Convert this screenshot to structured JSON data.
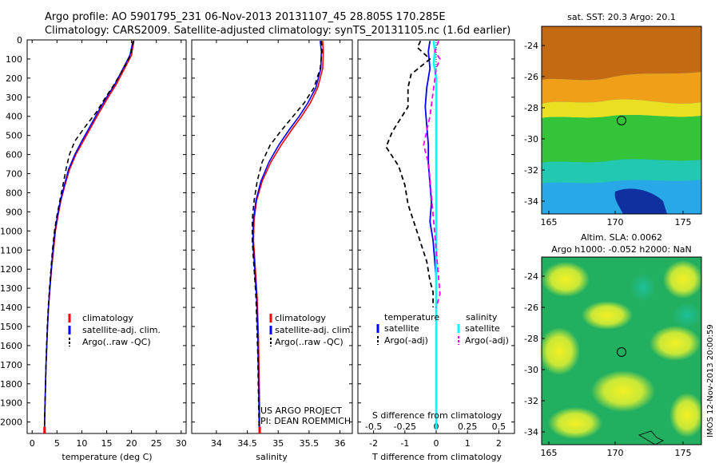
{
  "header": {
    "line1": "Argo profile: AO 5901795_231 06-Nov-2013 20131107_45 28.805S 170.285E",
    "line2": "Climatology: CARS2009. Satellite-adjusted climatology: synTS_20131105.nc (1.6d earlier)"
  },
  "colors": {
    "climatology": "#ff0000",
    "satellite": "#0000ff",
    "argo": "#000000",
    "salinity_satellite": "#00ffff",
    "salinity_argo": "#ff00ff"
  },
  "depth_axis": {
    "ticks": [
      "0",
      "100",
      "200",
      "300",
      "400",
      "500",
      "600",
      "700",
      "800",
      "900",
      "1000",
      "1100",
      "1200",
      "1300",
      "1400",
      "1500",
      "1600",
      "1700",
      "1800",
      "1900",
      "2000"
    ],
    "range": [
      0,
      2060
    ]
  },
  "chart_data": [
    {
      "id": "temperature",
      "type": "line",
      "xlabel": "temperature (deg C)",
      "xlim": [
        -1,
        31
      ],
      "x_ticks": [
        "0",
        "5",
        "10",
        "15",
        "20",
        "25",
        "30"
      ],
      "ylim": [
        2060,
        0
      ],
      "legend": [
        "climatology",
        "satellite-adj. clim.",
        "Argo(..raw -QC)"
      ],
      "series": [
        {
          "name": "climatology",
          "style": "solid",
          "color": "#ff0000",
          "points": [
            [
              20.5,
              5
            ],
            [
              20.3,
              30
            ],
            [
              20,
              80
            ],
            [
              18.6,
              150
            ],
            [
              17,
              230
            ],
            [
              15.3,
              300
            ],
            [
              13.5,
              380
            ],
            [
              12,
              450
            ],
            [
              10.3,
              530
            ],
            [
              8.8,
              600
            ],
            [
              7.5,
              680
            ],
            [
              6.6,
              760
            ],
            [
              5.8,
              840
            ],
            [
              5.2,
              920
            ],
            [
              4.7,
              1000
            ],
            [
              4.3,
              1100
            ],
            [
              3.9,
              1200
            ],
            [
              3.6,
              1300
            ],
            [
              3.3,
              1400
            ],
            [
              3.1,
              1500
            ],
            [
              2.95,
              1600
            ],
            [
              2.8,
              1700
            ],
            [
              2.7,
              1800
            ],
            [
              2.6,
              1900
            ],
            [
              2.5,
              2000
            ],
            [
              2.5,
              2040
            ]
          ]
        },
        {
          "name": "satellite-adj. clim.",
          "style": "solid",
          "color": "#0000ff",
          "points": [
            [
              20.3,
              5
            ],
            [
              20.1,
              30
            ],
            [
              19.7,
              80
            ],
            [
              18.3,
              150
            ],
            [
              16.7,
              230
            ],
            [
              15,
              300
            ],
            [
              13.2,
              380
            ],
            [
              11.7,
              450
            ],
            [
              10,
              530
            ],
            [
              8.6,
              600
            ],
            [
              7.3,
              680
            ],
            [
              6.5,
              760
            ],
            [
              5.7,
              840
            ],
            [
              5.1,
              920
            ],
            [
              4.6,
              1000
            ],
            [
              4.2,
              1100
            ],
            [
              3.85,
              1200
            ],
            [
              3.55,
              1300
            ],
            [
              3.3,
              1400
            ],
            [
              3.1,
              1500
            ],
            [
              2.95,
              1600
            ],
            [
              2.8,
              1700
            ],
            [
              2.7,
              1800
            ],
            [
              2.6,
              1900
            ],
            [
              2.5,
              2000
            ],
            [
              2.5,
              2040
            ]
          ]
        },
        {
          "name": "Argo(..raw -QC)",
          "style": "dashed",
          "color": "#000000",
          "points": [
            [
              20.4,
              5
            ],
            [
              20.2,
              30
            ],
            [
              19.8,
              80
            ],
            [
              18.4,
              150
            ],
            [
              16.6,
              230
            ],
            [
              14.8,
              300
            ],
            [
              12.9,
              380
            ],
            [
              10.8,
              450
            ],
            [
              8.6,
              530
            ],
            [
              7.5,
              600
            ],
            [
              6.8,
              680
            ],
            [
              6.2,
              760
            ],
            [
              5.6,
              840
            ],
            [
              5,
              920
            ],
            [
              4.5,
              1000
            ],
            [
              4.1,
              1100
            ],
            [
              3.8,
              1200
            ],
            [
              3.5,
              1300
            ],
            [
              3.25,
              1400
            ],
            [
              3.05,
              1500
            ],
            [
              2.9,
              1600
            ],
            [
              2.8,
              1700
            ],
            [
              2.7,
              1800
            ],
            [
              2.6,
              1900
            ],
            [
              2.5,
              2000
            ],
            [
              2.5,
              2040
            ]
          ]
        }
      ]
    },
    {
      "id": "salinity",
      "type": "line",
      "xlabel": "salinity",
      "xlim": [
        33.6,
        36.2
      ],
      "x_ticks": [
        "34",
        "34.5",
        "35",
        "35.5",
        "36"
      ],
      "ylim": [
        2060,
        0
      ],
      "legend": [
        "climatology",
        "satellite-adj. clim.",
        "Argo(..raw -QC)"
      ],
      "annotations": [
        "US ARGO PROJECT",
        "PI: DEAN ROEMMICH"
      ],
      "series": [
        {
          "name": "climatology",
          "style": "solid",
          "color": "#ff0000",
          "points": [
            [
              35.72,
              5
            ],
            [
              35.73,
              60
            ],
            [
              35.72,
              150
            ],
            [
              35.64,
              250
            ],
            [
              35.52,
              330
            ],
            [
              35.38,
              400
            ],
            [
              35.22,
              470
            ],
            [
              35.05,
              550
            ],
            [
              34.88,
              640
            ],
            [
              34.74,
              740
            ],
            [
              34.65,
              840
            ],
            [
              34.61,
              940
            ],
            [
              34.6,
              1050
            ],
            [
              34.62,
              1150
            ],
            [
              34.64,
              1250
            ],
            [
              34.66,
              1350
            ],
            [
              34.67,
              1450
            ],
            [
              34.68,
              1550
            ],
            [
              34.685,
              1650
            ],
            [
              34.69,
              1750
            ],
            [
              34.695,
              1850
            ],
            [
              34.7,
              1950
            ],
            [
              34.7,
              2040
            ]
          ]
        },
        {
          "name": "satellite-adj. clim.",
          "style": "solid",
          "color": "#0000ff",
          "points": [
            [
              35.68,
              5
            ],
            [
              35.7,
              60
            ],
            [
              35.69,
              150
            ],
            [
              35.61,
              250
            ],
            [
              35.48,
              330
            ],
            [
              35.34,
              400
            ],
            [
              35.18,
              470
            ],
            [
              35.01,
              550
            ],
            [
              34.85,
              640
            ],
            [
              34.72,
              740
            ],
            [
              34.64,
              840
            ],
            [
              34.6,
              940
            ],
            [
              34.59,
              1050
            ],
            [
              34.61,
              1150
            ],
            [
              34.63,
              1250
            ],
            [
              34.65,
              1350
            ],
            [
              34.66,
              1450
            ],
            [
              34.67,
              1550
            ],
            [
              34.675,
              1650
            ],
            [
              34.68,
              1750
            ],
            [
              34.685,
              1850
            ],
            [
              34.69,
              1950
            ],
            [
              34.69,
              2040
            ]
          ]
        },
        {
          "name": "Argo(..raw -QC)",
          "style": "dashed",
          "color": "#000000",
          "points": [
            [
              35.7,
              5
            ],
            [
              35.71,
              60
            ],
            [
              35.68,
              150
            ],
            [
              35.58,
              250
            ],
            [
              35.42,
              330
            ],
            [
              35.24,
              400
            ],
            [
              35.06,
              470
            ],
            [
              34.87,
              550
            ],
            [
              34.74,
              640
            ],
            [
              34.66,
              740
            ],
            [
              34.61,
              840
            ],
            [
              34.58,
              940
            ],
            [
              34.58,
              1050
            ],
            [
              34.6,
              1150
            ],
            [
              34.62,
              1250
            ],
            [
              34.64,
              1350
            ],
            [
              34.65,
              1450
            ],
            [
              34.66,
              1550
            ],
            [
              34.67,
              1650
            ],
            [
              34.675,
              1750
            ],
            [
              34.68,
              1850
            ],
            [
              34.685,
              1950
            ],
            [
              34.69,
              2040
            ]
          ]
        }
      ]
    },
    {
      "id": "difference",
      "type": "line",
      "xlabel": "T difference from climatology",
      "xlabel_top": "S difference from climatology",
      "xlim": [
        -2.5,
        2.5
      ],
      "x_ticks_T": [
        "-2",
        "-1",
        "0",
        "1",
        "2"
      ],
      "x_ticks_S": [
        "-0.5",
        "-0.25",
        "0",
        "0.25",
        "0.5"
      ],
      "ylim": [
        2060,
        0
      ],
      "legend": {
        "temperature_header": "temperature",
        "salinity_header": "salinity",
        "items": [
          "satellite",
          "Argo(-adj)",
          "satellite",
          "Argo(-adj)"
        ]
      },
      "series": [
        {
          "name": "temperature satellite",
          "style": "solid",
          "color": "#0000ff",
          "unit": "T",
          "points": [
            [
              -0.2,
              5
            ],
            [
              -0.25,
              60
            ],
            [
              -0.2,
              150
            ],
            [
              -0.3,
              250
            ],
            [
              -0.35,
              350
            ],
            [
              -0.3,
              450
            ],
            [
              -0.25,
              550
            ],
            [
              -0.25,
              650
            ],
            [
              -0.2,
              750
            ],
            [
              -0.15,
              850
            ],
            [
              -0.2,
              950
            ],
            [
              -0.1,
              1050
            ],
            [
              -0.05,
              1150
            ],
            [
              0,
              1250
            ],
            [
              0,
              1400
            ],
            [
              0,
              2040
            ]
          ]
        },
        {
          "name": "temperature Argo(-adj)",
          "style": "dashed",
          "color": "#000000",
          "unit": "T",
          "points": [
            [
              -0.5,
              5
            ],
            [
              -0.6,
              40
            ],
            [
              -0.2,
              100
            ],
            [
              -0.8,
              180
            ],
            [
              -0.9,
              250
            ],
            [
              -0.9,
              350
            ],
            [
              -1.4,
              480
            ],
            [
              -1.6,
              560
            ],
            [
              -1.2,
              660
            ],
            [
              -1.0,
              760
            ],
            [
              -0.9,
              860
            ],
            [
              -0.7,
              960
            ],
            [
              -0.5,
              1060
            ],
            [
              -0.3,
              1160
            ],
            [
              -0.2,
              1260
            ],
            [
              -0.1,
              1320
            ],
            [
              -0.1,
              1400
            ]
          ]
        },
        {
          "name": "salinity satellite",
          "style": "solid",
          "color": "#00ffff",
          "unit": "S",
          "points": [
            [
              -0.02,
              5
            ],
            [
              -0.01,
              60
            ],
            [
              -0.02,
              120
            ],
            [
              0,
              200
            ],
            [
              0,
              300
            ],
            [
              0,
              1300
            ],
            [
              0,
              1400
            ],
            [
              0,
              2040
            ]
          ]
        },
        {
          "name": "salinity Argo(-adj)",
          "style": "dashed",
          "color": "#ff00ff",
          "unit": "S",
          "points": [
            [
              0.02,
              5
            ],
            [
              -0.01,
              60
            ],
            [
              0.03,
              100
            ],
            [
              0,
              150
            ],
            [
              -0.05,
              400
            ],
            [
              -0.1,
              550
            ],
            [
              -0.06,
              650
            ],
            [
              -0.04,
              800
            ],
            [
              -0.02,
              950
            ],
            [
              0,
              1100
            ],
            [
              0.02,
              1250
            ],
            [
              0.03,
              1330
            ],
            [
              0,
              1400
            ]
          ]
        }
      ]
    }
  ],
  "maps": {
    "sst": {
      "title": "sat. SST: 20.3 Argo: 20.1",
      "x_ticks": [
        "165",
        "170",
        "175"
      ],
      "y_ticks": [
        "-24",
        "-26",
        "-28",
        "-30",
        "-32",
        "-34"
      ]
    },
    "sla": {
      "title_line1": "Altim. SLA: 0.0062",
      "title_line2": "Argo h1000: -0.052 h2000: NaN",
      "x_ticks": [
        "165",
        "170",
        "175"
      ],
      "y_ticks": [
        "-24",
        "-26",
        "-28",
        "-30",
        "-32",
        "-34"
      ]
    }
  },
  "footer_vertical": "IMOS 12-Nov-2013 20:00:59"
}
